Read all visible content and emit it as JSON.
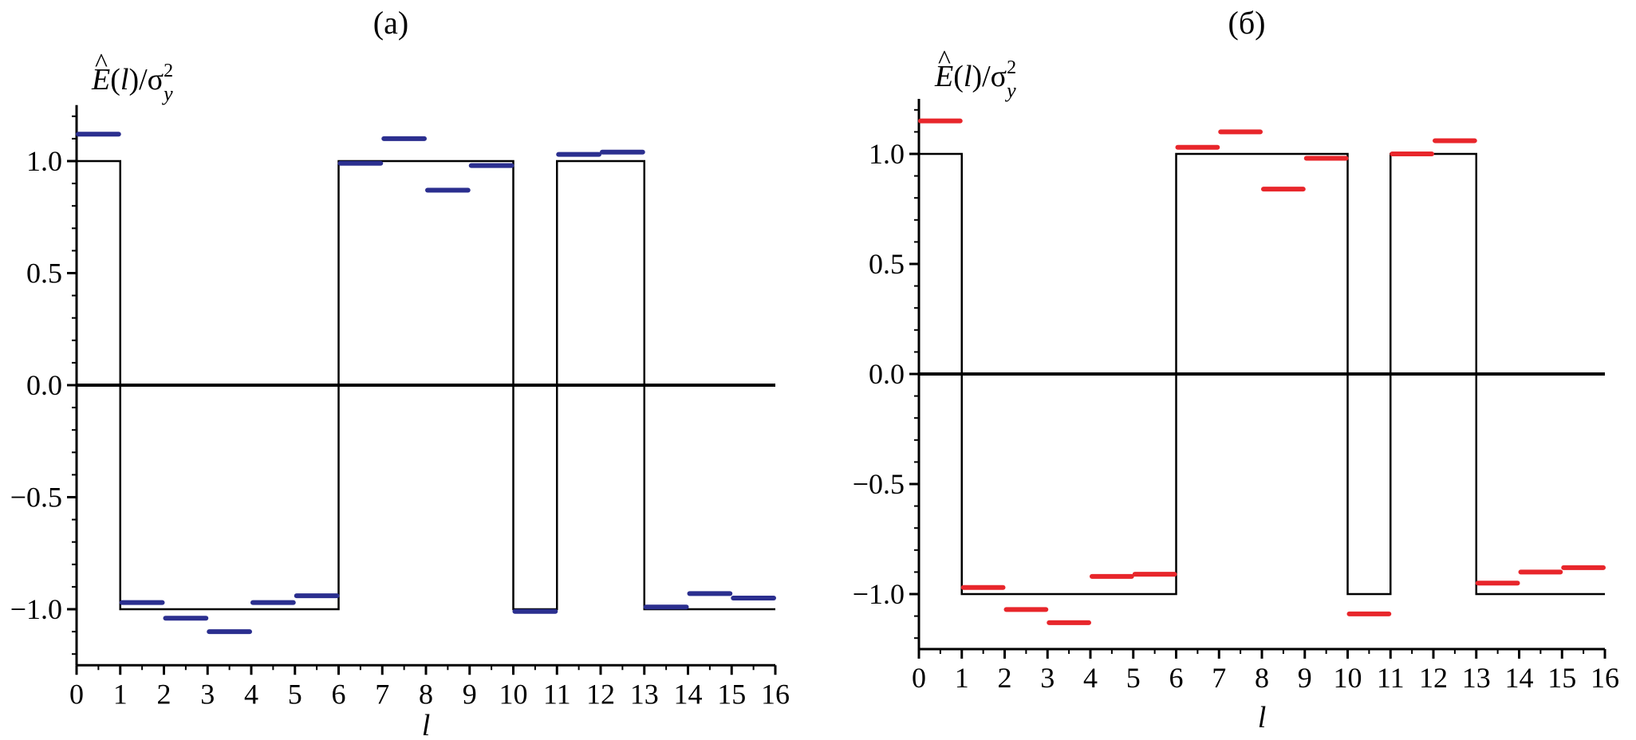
{
  "chart_data": [
    {
      "type": "line",
      "title": "(a)",
      "ylabel_html": "Ê(l)/σ²y",
      "ylabel_parts": {
        "main": "E",
        "hat": "^",
        "arg": "(l)/σ",
        "sup": "2",
        "sub": "y"
      },
      "xlabel": "l",
      "xlim": [
        0,
        16
      ],
      "ylim": [
        -1.25,
        1.25
      ],
      "xticks": [
        0,
        1,
        2,
        3,
        4,
        5,
        6,
        7,
        8,
        9,
        10,
        11,
        12,
        13,
        14,
        15,
        16
      ],
      "yticks": [
        -1.0,
        -0.5,
        0.0,
        0.5,
        1.0
      ],
      "ytick_labels": [
        "−1.0",
        "−0.5",
        "0.0",
        "0.5",
        "1.0"
      ],
      "step_values": [
        1,
        -1,
        -1,
        -1,
        -1,
        -1,
        1,
        1,
        1,
        1,
        -1,
        1,
        1,
        -1,
        -1,
        -1
      ],
      "estimate_color": "#2b2f8f",
      "estimate_values": [
        1.12,
        -0.97,
        -1.04,
        -1.1,
        -0.97,
        -0.94,
        0.99,
        1.1,
        0.87,
        0.98,
        -1.01,
        1.03,
        1.04,
        -0.99,
        -0.93,
        -0.95
      ]
    },
    {
      "type": "line",
      "title": "(б)",
      "ylabel_parts": {
        "main": "E",
        "hat": "^",
        "arg": "(l)/σ",
        "sup": "2",
        "sub": "y"
      },
      "xlabel": "l",
      "xlim": [
        0,
        16
      ],
      "ylim": [
        -1.25,
        1.25
      ],
      "xticks": [
        0,
        1,
        2,
        3,
        4,
        5,
        6,
        7,
        8,
        9,
        10,
        11,
        12,
        13,
        14,
        15,
        16
      ],
      "yticks": [
        -1.0,
        -0.5,
        0.0,
        0.5,
        1.0
      ],
      "ytick_labels": [
        "−1.0",
        "−0.5",
        "0.0",
        "0.5",
        "1.0"
      ],
      "step_values": [
        1,
        -1,
        -1,
        -1,
        -1,
        -1,
        1,
        1,
        1,
        1,
        -1,
        1,
        1,
        -1,
        -1,
        -1
      ],
      "estimate_color": "#e8262b",
      "estimate_values": [
        1.15,
        -0.97,
        -1.07,
        -1.13,
        -0.92,
        -0.91,
        1.03,
        1.1,
        0.84,
        0.98,
        -1.09,
        1.0,
        1.06,
        -0.95,
        -0.9,
        -0.88
      ]
    }
  ]
}
